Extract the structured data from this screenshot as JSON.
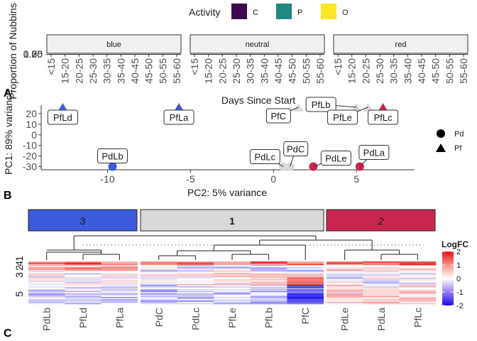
{
  "panel_labels": {
    "a": "A",
    "b": "B",
    "c": "C"
  },
  "chart_data": [
    {
      "type": "bar",
      "panel": "A",
      "legend": {
        "title": "Activity",
        "entries": [
          {
            "label": "C",
            "color": "#3b0a4c"
          },
          {
            "label": "P",
            "color": "#22877d"
          },
          {
            "label": "O",
            "color": "#fce625"
          }
        ]
      },
      "facets": [
        "blue",
        "neutral",
        "red"
      ],
      "categories": [
        "<15",
        "15-20",
        "20-25",
        "25-30",
        "30-35",
        "35-40",
        "40-45",
        "45-50",
        "50-55",
        "55-60"
      ],
      "xlabel": "Days Since Start",
      "ylabel": "Proportion of Nubbins",
      "y_tick_labels": [
        "0.00",
        "0.25",
        "0.50",
        "0.75",
        "1.00"
      ]
    },
    {
      "type": "scatter",
      "panel": "B",
      "xlabel": "PC2: 5% variance",
      "ylabel": "PC1: 89% variance",
      "xlim": [
        -14,
        8.5
      ],
      "ylim": [
        -33,
        28
      ],
      "x_ticks": [
        -10,
        -5,
        0,
        5
      ],
      "y_ticks": [
        -30,
        -20,
        -10,
        0,
        10,
        20
      ],
      "shape_legend": [
        {
          "label": "Pd",
          "shape": "circle"
        },
        {
          "label": "Pf",
          "shape": "triangle"
        }
      ],
      "group_colors": {
        "blue": "#3b5bdb",
        "neutral": "#d9d9d9",
        "red": "#c9264f"
      },
      "points": [
        {
          "name": "PfLd",
          "x": -12.7,
          "y": 26,
          "shape": "triangle",
          "group": "blue"
        },
        {
          "name": "PfLa",
          "x": -5.7,
          "y": 26,
          "shape": "triangle",
          "group": "blue"
        },
        {
          "name": "PdLb",
          "x": -9.7,
          "y": -30,
          "shape": "circle",
          "group": "blue"
        },
        {
          "name": "PfC",
          "x": 1.5,
          "y": 26,
          "shape": "triangle",
          "group": "neutral"
        },
        {
          "name": "PfLb",
          "x": 5.0,
          "y": 26,
          "shape": "triangle",
          "group": "neutral"
        },
        {
          "name": "PfLe",
          "x": 5.7,
          "y": 26,
          "shape": "triangle",
          "group": "neutral"
        },
        {
          "name": "PdLc",
          "x": 0.6,
          "y": -30,
          "shape": "circle",
          "group": "neutral"
        },
        {
          "name": "PdC",
          "x": 1.0,
          "y": -30,
          "shape": "circle",
          "group": "neutral"
        },
        {
          "name": "PfLc",
          "x": 6.6,
          "y": 26,
          "shape": "triangle",
          "group": "red"
        },
        {
          "name": "PdLe",
          "x": 2.4,
          "y": -30,
          "shape": "circle",
          "group": "red"
        },
        {
          "name": "PdLa",
          "x": 5.2,
          "y": -30,
          "shape": "circle",
          "group": "red"
        }
      ]
    },
    {
      "type": "heatmap",
      "panel": "C",
      "clusters": [
        {
          "label": "3",
          "color": "#3b5bdb",
          "columns": [
            "PdLb",
            "PfLd",
            "PfLa"
          ]
        },
        {
          "label": "1",
          "color": "#d9d9d9",
          "columns": [
            "PdC",
            "PdLc",
            "PfLe",
            "PfLb",
            "PfC"
          ]
        },
        {
          "label": "2",
          "color": "#c9264f",
          "columns": [
            "PdLe",
            "PdLa",
            "PfLc"
          ]
        }
      ],
      "row_labels": [
        "3",
        "2",
        "4",
        "1",
        "5"
      ],
      "legend": {
        "title": "LogFC",
        "ticks": [
          2,
          1,
          0,
          -1,
          -2
        ],
        "range": [
          -2,
          2
        ]
      }
    }
  ]
}
